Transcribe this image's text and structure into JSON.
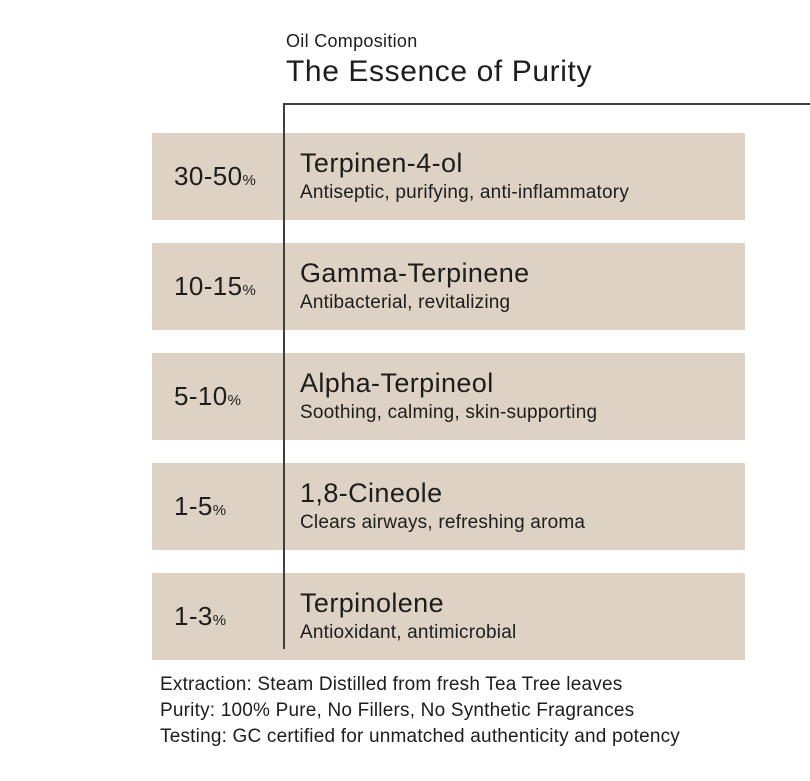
{
  "header": {
    "eyebrow": "Oil Composition",
    "title": "The Essence of Purity"
  },
  "percent_suffix": "%",
  "rows": [
    {
      "percent": "30-50",
      "name": "Terpinen-4-ol",
      "description": "Antiseptic, purifying, anti-inflammatory"
    },
    {
      "percent": "10-15",
      "name": "Gamma-Terpinene",
      "description": "Antibacterial, revitalizing"
    },
    {
      "percent": "5-10",
      "name": "Alpha-Terpineol",
      "description": "Soothing, calming, skin-supporting"
    },
    {
      "percent": "1-5",
      "name": "1,8-Cineole",
      "description": "Clears airways, refreshing aroma"
    },
    {
      "percent": "1-3",
      "name": "Terpinolene",
      "description": "Antioxidant, antimicrobial"
    }
  ],
  "footer": {
    "lines": [
      "Extraction: Steam Distilled from fresh Tea Tree leaves",
      "Purity: 100% Pure, No Fillers, No Synthetic Fragrances",
      "Testing: GC certified for unmatched authenticity and potency"
    ]
  },
  "colors": {
    "background": "#ffffff",
    "row_band": "#ded2c4",
    "text": "#1d1d1d",
    "line": "#3e3e3e"
  }
}
